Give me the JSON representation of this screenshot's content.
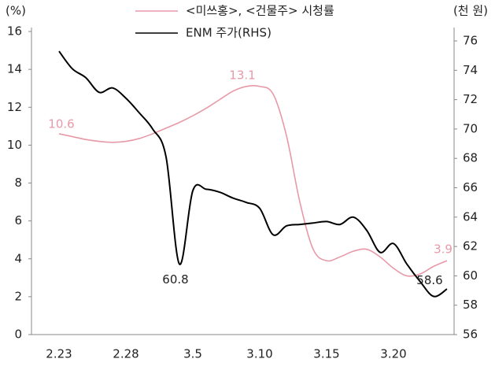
{
  "chart_data": {
    "type": "line",
    "y_label": "(%)",
    "y2_label": "(천 원)",
    "categories": [
      "2.23",
      null,
      null,
      null,
      null,
      "2.28",
      null,
      null,
      null,
      null,
      "3.5",
      null,
      null,
      null,
      null,
      "3.10",
      null,
      null,
      null,
      null,
      "3.15",
      null,
      null,
      null,
      null,
      "3.20",
      null,
      null,
      null,
      null
    ],
    "series": [
      {
        "name": "<미쓰홍>, <건물주> 시청률",
        "color": "#e899a8",
        "values": [
          10.6,
          10.45,
          10.3,
          10.2,
          10.15,
          10.2,
          10.35,
          10.6,
          10.9,
          11.2,
          11.55,
          11.95,
          12.4,
          12.85,
          13.1,
          13.1,
          12.7,
          10.5,
          7.0,
          4.5,
          3.9,
          4.1,
          4.4,
          4.5,
          4.1,
          3.5,
          3.1,
          3.2,
          3.6,
          3.9
        ]
      },
      {
        "name": "ENM 주가(RHS)",
        "color": "#000000",
        "axis": "y2",
        "values": [
          75.3,
          74.1,
          73.5,
          72.5,
          72.8,
          72.1,
          71.1,
          70.0,
          68.1,
          60.8,
          65.8,
          65.9,
          65.7,
          65.3,
          65.0,
          64.6,
          62.8,
          63.4,
          63.5,
          63.6,
          63.7,
          63.5,
          64.0,
          63.1,
          61.6,
          62.2,
          60.8,
          59.6,
          58.6,
          59.1
        ]
      }
    ],
    "ylim": [
      0,
      16
    ],
    "yticks": [
      0,
      2,
      4,
      6,
      8,
      10,
      12,
      14,
      16
    ],
    "y2lim": [
      56,
      76
    ],
    "y2ticks": [
      56,
      58,
      60,
      62,
      64,
      66,
      68,
      70,
      72,
      74,
      76
    ],
    "legend": "top"
  }
}
